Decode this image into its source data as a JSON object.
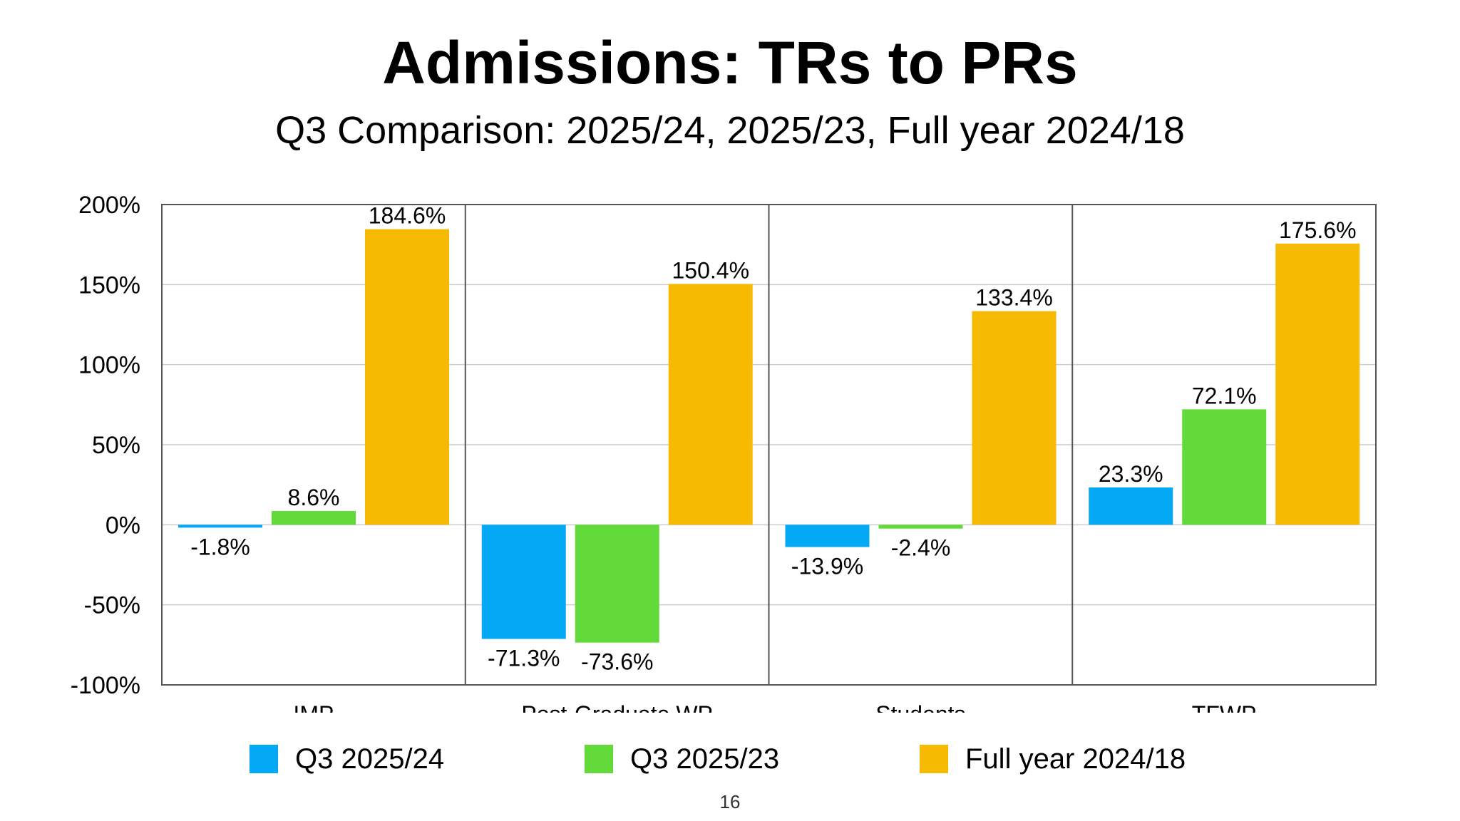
{
  "slide": {
    "title": "Admissions: TRs to PRs",
    "subtitle": "Q3 Comparison: 2025/24, 2025/23, Full year 2024/18",
    "page_number": "16"
  },
  "chart_data": {
    "type": "bar",
    "title": "",
    "xlabel": "",
    "ylabel": "",
    "categories": [
      "IMP",
      "Post-Graduate WP",
      "Students",
      "TFWP"
    ],
    "series": [
      {
        "name": "Q3 2025/24",
        "color": "#03A9F4",
        "values": [
          -1.8,
          -71.3,
          -13.9,
          23.3
        ],
        "labels": [
          "-1.8%",
          "-71.3%",
          "-13.9%",
          "23.3%"
        ]
      },
      {
        "name": "Q3 2025/23",
        "color": "#62DA3A",
        "values": [
          8.6,
          -73.6,
          -2.4,
          72.1
        ],
        "labels": [
          "8.6%",
          "-73.6%",
          "-2.4%",
          "72.1%"
        ]
      },
      {
        "name": "Full year 2024/18",
        "color": "#F7BA02",
        "values": [
          184.6,
          150.4,
          133.4,
          175.6
        ],
        "labels": [
          "184.6%",
          "150.4%",
          "133.4%",
          "175.6%"
        ]
      }
    ],
    "ylim": [
      -100,
      200
    ],
    "yticks": [
      200,
      150,
      100,
      50,
      0,
      -50,
      -100
    ],
    "ytick_labels": [
      "200%",
      "150%",
      "100%",
      "50%",
      "0%",
      "-50%",
      "-100%"
    ],
    "grid": true,
    "legend_position": "bottom"
  }
}
